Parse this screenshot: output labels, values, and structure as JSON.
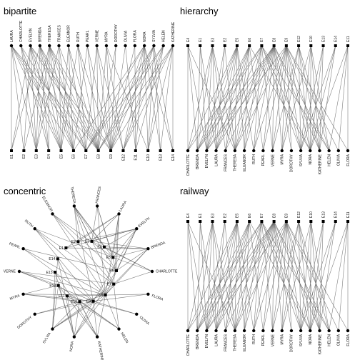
{
  "women": [
    "LAURA",
    "CHARLOTTE",
    "EVELYN",
    "BRENDA",
    "THERESA",
    "FRANCES",
    "ELEANOR",
    "RUTH",
    "PEARL",
    "VERNE",
    "MYRA",
    "DOROTHY",
    "OLIVIA",
    "FLORA",
    "NORA",
    "SYLVIA",
    "HELEN",
    "KATHERINE"
  ],
  "events": [
    "E1",
    "E2",
    "E3",
    "E4",
    "E5",
    "E6",
    "E7",
    "E8",
    "E9",
    "E10",
    "E11",
    "E12",
    "E13",
    "E14"
  ],
  "attendance": {
    "EVELYN": [
      "E1",
      "E2",
      "E3",
      "E4",
      "E5",
      "E6",
      "E8",
      "E9"
    ],
    "LAURA": [
      "E1",
      "E2",
      "E3",
      "E5",
      "E6",
      "E7",
      "E8"
    ],
    "THERESA": [
      "E2",
      "E3",
      "E4",
      "E5",
      "E6",
      "E7",
      "E8",
      "E9"
    ],
    "BRENDA": [
      "E1",
      "E3",
      "E4",
      "E5",
      "E6",
      "E7",
      "E8"
    ],
    "CHARLOTTE": [
      "E3",
      "E4",
      "E5",
      "E7"
    ],
    "FRANCES": [
      "E3",
      "E5",
      "E6",
      "E8"
    ],
    "ELEANOR": [
      "E5",
      "E6",
      "E7",
      "E8"
    ],
    "PEARL": [
      "E6",
      "E8",
      "E9"
    ],
    "RUTH": [
      "E5",
      "E7",
      "E8",
      "E9"
    ],
    "VERNE": [
      "E7",
      "E8",
      "E9",
      "E12"
    ],
    "MYRA": [
      "E8",
      "E9",
      "E10",
      "E12"
    ],
    "KATHERINE": [
      "E8",
      "E9",
      "E10",
      "E12",
      "E13",
      "E14"
    ],
    "SYLVIA": [
      "E7",
      "E8",
      "E9",
      "E10",
      "E12",
      "E13",
      "E14"
    ],
    "NORA": [
      "E6",
      "E7",
      "E9",
      "E10",
      "E11",
      "E12",
      "E13",
      "E14"
    ],
    "HELEN": [
      "E7",
      "E8",
      "E10",
      "E11",
      "E12"
    ],
    "DOROTHY": [
      "E8",
      "E9"
    ],
    "OLIVIA": [
      "E9",
      "E11"
    ],
    "FLORA": [
      "E9",
      "E11"
    ]
  },
  "panels": {
    "bipartite": {
      "title": "bipartite",
      "top_order": [
        "LAURA",
        "CHARLOTTE",
        "EVELYN",
        "BRENDA",
        "THERESA",
        "FRANCES",
        "ELEANOR",
        "RUTH",
        "PEARL",
        "VERNE",
        "MYRA",
        "DOROTHY",
        "OLIVIA",
        "FLORA",
        "NORA",
        "SYLVIA",
        "HELEN",
        "KATHERINE"
      ],
      "bottom_order": [
        "E1",
        "E2",
        "E3",
        "E4",
        "E5",
        "E6",
        "E7",
        "E8",
        "E9",
        "E12",
        "E11",
        "E10",
        "E13",
        "E14"
      ]
    },
    "hierarchy": {
      "title": "hierarchy",
      "top_order": [
        "E4",
        "E1",
        "E3",
        "E2",
        "E5",
        "E6",
        "E7",
        "E8",
        "E9",
        "E12",
        "E10",
        "E13",
        "E14",
        "E11"
      ],
      "bottom_order": [
        "CHARLOTTE",
        "BRENDA",
        "EVELYN",
        "LAURA",
        "FRANCES",
        "THERESA",
        "ELEANOR",
        "RUTH",
        "PEARL",
        "VERNE",
        "MYRA",
        "DOROTHY",
        "SYLVIA",
        "NORA",
        "KATHERINE",
        "HELEN",
        "OLIVIA",
        "FLORA"
      ]
    },
    "concentric": {
      "title": "concentric",
      "outer_order": [
        "THERESA",
        "FRANCES",
        "LAURA",
        "EVELYN",
        "BRENDA",
        "CHARLOTTE",
        "FLORA",
        "OLIVIA",
        "HELEN",
        "KATHERINE",
        "NORA",
        "SYLVIA",
        "DOROTHY",
        "MYRA",
        "VERNE",
        "PEARL",
        "RUTH",
        "ELEANOR"
      ],
      "inner_order": [
        "E1",
        "E2",
        "E3",
        "E4",
        "E5",
        "E6",
        "E7",
        "E8",
        "E9",
        "E10",
        "E11",
        "E12",
        "E13",
        "E14"
      ]
    },
    "railway": {
      "title": "railway",
      "top_order": [
        "E4",
        "E1",
        "E3",
        "E2",
        "E5",
        "E6",
        "E7",
        "E8",
        "E9",
        "E12",
        "E10",
        "E13",
        "E14",
        "E11"
      ],
      "bottom_order": [
        "CHARLOTTE",
        "BRENDA",
        "EVELYN",
        "LAURA",
        "FRANCES",
        "THERESA",
        "ELEANOR",
        "RUTH",
        "PEARL",
        "VERNE",
        "MYRA",
        "DOROTHY",
        "SYLVIA",
        "NORA",
        "KATHERINE",
        "HELEN",
        "OLIVIA",
        "FLORA"
      ]
    }
  },
  "colors": {
    "edge": "#555555",
    "node": "#000000",
    "text": "#111111"
  }
}
